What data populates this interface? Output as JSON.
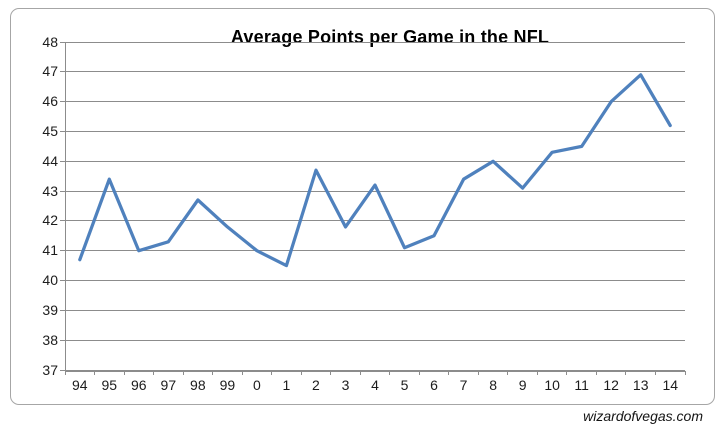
{
  "watermark": "wizardofvegas.com",
  "chart_data": {
    "type": "line",
    "title": "Average Points per Game in the NFL",
    "categories": [
      "94",
      "95",
      "96",
      "97",
      "98",
      "99",
      "0",
      "1",
      "2",
      "3",
      "4",
      "5",
      "6",
      "7",
      "8",
      "9",
      "10",
      "11",
      "12",
      "13",
      "14"
    ],
    "values": [
      40.7,
      43.4,
      41.0,
      41.3,
      42.7,
      41.8,
      41.0,
      40.5,
      43.7,
      41.8,
      43.2,
      41.1,
      41.5,
      43.4,
      44.0,
      43.1,
      44.3,
      44.5,
      46.0,
      46.9,
      45.2
    ],
    "xlabel": "",
    "ylabel": "",
    "ylim": [
      37,
      48
    ],
    "ytick_step": 1,
    "grid": "horizontal-major",
    "legend": "none",
    "colors": {
      "line": "#4F81BD",
      "gridline": "#8C8C8C",
      "axis": "#8C8C8C",
      "frame_border": "#A6A6A6",
      "tick_text": "#1C1C1C",
      "title_text": "#000000",
      "background": "#FFFFFF"
    }
  }
}
